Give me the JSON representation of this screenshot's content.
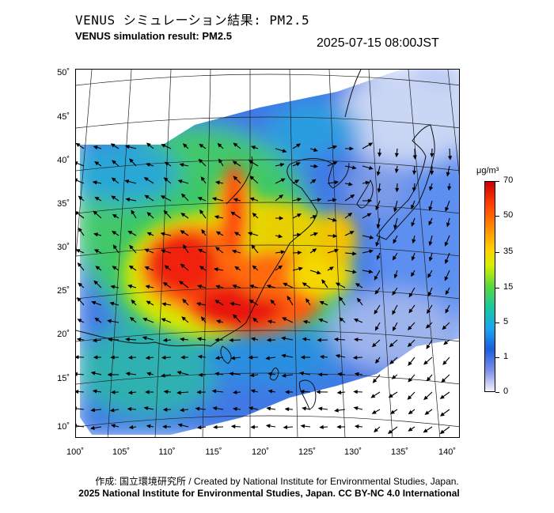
{
  "header": {
    "title_jp": "VENUS シミュレーション結果: PM2.5",
    "title_en": "VENUS simulation result: PM2.5",
    "timestamp": "2025-07-15 08:00JST"
  },
  "map": {
    "lat_labels": [
      "50˚",
      "45˚",
      "40˚",
      "35˚",
      "30˚",
      "25˚",
      "20˚",
      "15˚",
      "10˚"
    ],
    "lon_labels": [
      "100˚",
      "105˚",
      "110˚",
      "115˚",
      "120˚",
      "125˚",
      "130˚",
      "135˚",
      "140˚"
    ],
    "lat_range": [
      9,
      51
    ],
    "lon_range": [
      100,
      141
    ]
  },
  "colorbar": {
    "unit": "μg/m³",
    "ticks": [
      "70",
      "50",
      "35",
      "15",
      "5",
      "1",
      "0"
    ],
    "colors": [
      "#c8000a",
      "#ff8c00",
      "#ffd000",
      "#58d83c",
      "#19a6f0",
      "#1b5edc",
      "#f2f2fb"
    ]
  },
  "footer": {
    "credit_line1": "作成: 国立環境研究所 / Created by National Institute for Environmental Studies, Japan.",
    "credit_line2": "2025 National Institute for Environmental Studies, Japan. CC BY-NC 4.0 International"
  }
}
